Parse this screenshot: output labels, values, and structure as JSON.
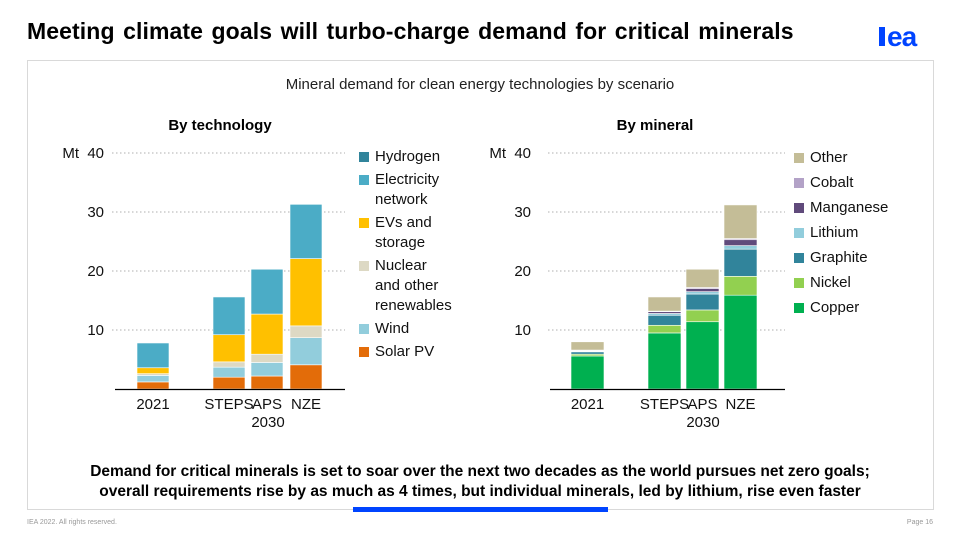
{
  "header": {
    "title": "Meeting climate goals will turbo-charge demand for critical minerals",
    "logo_text": "iea",
    "logo_color": "#0044ff"
  },
  "panel": {
    "subtitle": "Mineral demand for clean energy technologies by scenario",
    "caption_line1": "Demand for critical minerals is set to soar over the next two decades as the world pursues net zero goals;",
    "caption_line2": "overall requirements rise by as much as 4 times, but individual minerals, led by lithium, rise even faster"
  },
  "footer": {
    "copyright": "IEA 2022. All rights reserved.",
    "page": "Page 16"
  },
  "chart_data": [
    {
      "type": "bar",
      "stacked": true,
      "title": "By technology",
      "ylabel": "Mt",
      "ylim": [
        0,
        40
      ],
      "yticks": [
        "10",
        "20",
        "30",
        "40"
      ],
      "grid": true,
      "legend_position": "right",
      "categories": [
        "2021",
        "STEPS",
        "APS",
        "NZE"
      ],
      "group_label": "2030",
      "series": [
        {
          "name": "Solar PV",
          "color": "#e36c09",
          "values": [
            1.2,
            2.0,
            2.2,
            4.1
          ]
        },
        {
          "name": "Wind",
          "color": "#92cddc",
          "values": [
            1.1,
            1.7,
            2.3,
            4.6
          ]
        },
        {
          "name": "Nuclear and other renewables",
          "color": "#ddd9c4",
          "values": [
            0.3,
            0.9,
            1.4,
            2.0
          ]
        },
        {
          "name": "EVs and storage",
          "color": "#ffc000",
          "values": [
            1.0,
            4.6,
            6.8,
            11.4
          ]
        },
        {
          "name": "Electricity network",
          "color": "#4bacc6",
          "values": [
            4.2,
            6.4,
            7.6,
            9.2
          ]
        },
        {
          "name": "Hydrogen",
          "color": "#31849b",
          "values": [
            0.0,
            0.0,
            0.0,
            0.0
          ]
        }
      ],
      "legend": [
        {
          "name": "Hydrogen",
          "color": "#31849b",
          "lines": [
            "Hydrogen"
          ]
        },
        {
          "name": "Electricity network",
          "color": "#4bacc6",
          "lines": [
            "Electricity",
            "network"
          ]
        },
        {
          "name": "EVs and storage",
          "color": "#ffc000",
          "lines": [
            "EVs and",
            "storage"
          ]
        },
        {
          "name": "Nuclear and other renewables",
          "color": "#ddd9c4",
          "lines": [
            "Nuclear",
            "and other",
            "renewables"
          ]
        },
        {
          "name": "Wind",
          "color": "#92cddc",
          "lines": [
            "Wind"
          ]
        },
        {
          "name": "Solar PV",
          "color": "#e36c09",
          "lines": [
            "Solar PV"
          ]
        }
      ]
    },
    {
      "type": "bar",
      "stacked": true,
      "title": "By mineral",
      "ylabel": "Mt",
      "ylim": [
        0,
        40
      ],
      "yticks": [
        "10",
        "20",
        "30",
        "40"
      ],
      "grid": true,
      "legend_position": "right",
      "categories": [
        "2021",
        "STEPS",
        "APS",
        "NZE"
      ],
      "group_label": "2030",
      "series": [
        {
          "name": "Copper",
          "color": "#00b050",
          "values": [
            5.6,
            9.5,
            11.4,
            15.9
          ]
        },
        {
          "name": "Nickel",
          "color": "#92d050",
          "values": [
            0.3,
            1.3,
            2.0,
            3.2
          ]
        },
        {
          "name": "Graphite",
          "color": "#31849b",
          "values": [
            0.4,
            1.7,
            2.7,
            4.6
          ]
        },
        {
          "name": "Lithium",
          "color": "#92cddc",
          "values": [
            0.1,
            0.3,
            0.4,
            0.6
          ]
        },
        {
          "name": "Manganese",
          "color": "#604a7b",
          "values": [
            0.1,
            0.3,
            0.5,
            1.0
          ]
        },
        {
          "name": "Cobalt",
          "color": "#b3a2c7",
          "values": [
            0.1,
            0.1,
            0.2,
            0.2
          ]
        },
        {
          "name": "Other",
          "color": "#c4bd97",
          "values": [
            1.4,
            2.4,
            3.1,
            5.7
          ]
        }
      ],
      "legend": [
        {
          "name": "Other",
          "color": "#c4bd97",
          "lines": [
            "Other"
          ]
        },
        {
          "name": "Cobalt",
          "color": "#b3a2c7",
          "lines": [
            "Cobalt"
          ]
        },
        {
          "name": "Manganese",
          "color": "#604a7b",
          "lines": [
            "Manganese"
          ]
        },
        {
          "name": "Lithium",
          "color": "#92cddc",
          "lines": [
            "Lithium"
          ]
        },
        {
          "name": "Graphite",
          "color": "#31849b",
          "lines": [
            "Graphite"
          ]
        },
        {
          "name": "Nickel",
          "color": "#92d050",
          "lines": [
            "Nickel"
          ]
        },
        {
          "name": "Copper",
          "color": "#00b050",
          "lines": [
            "Copper"
          ]
        }
      ]
    }
  ]
}
